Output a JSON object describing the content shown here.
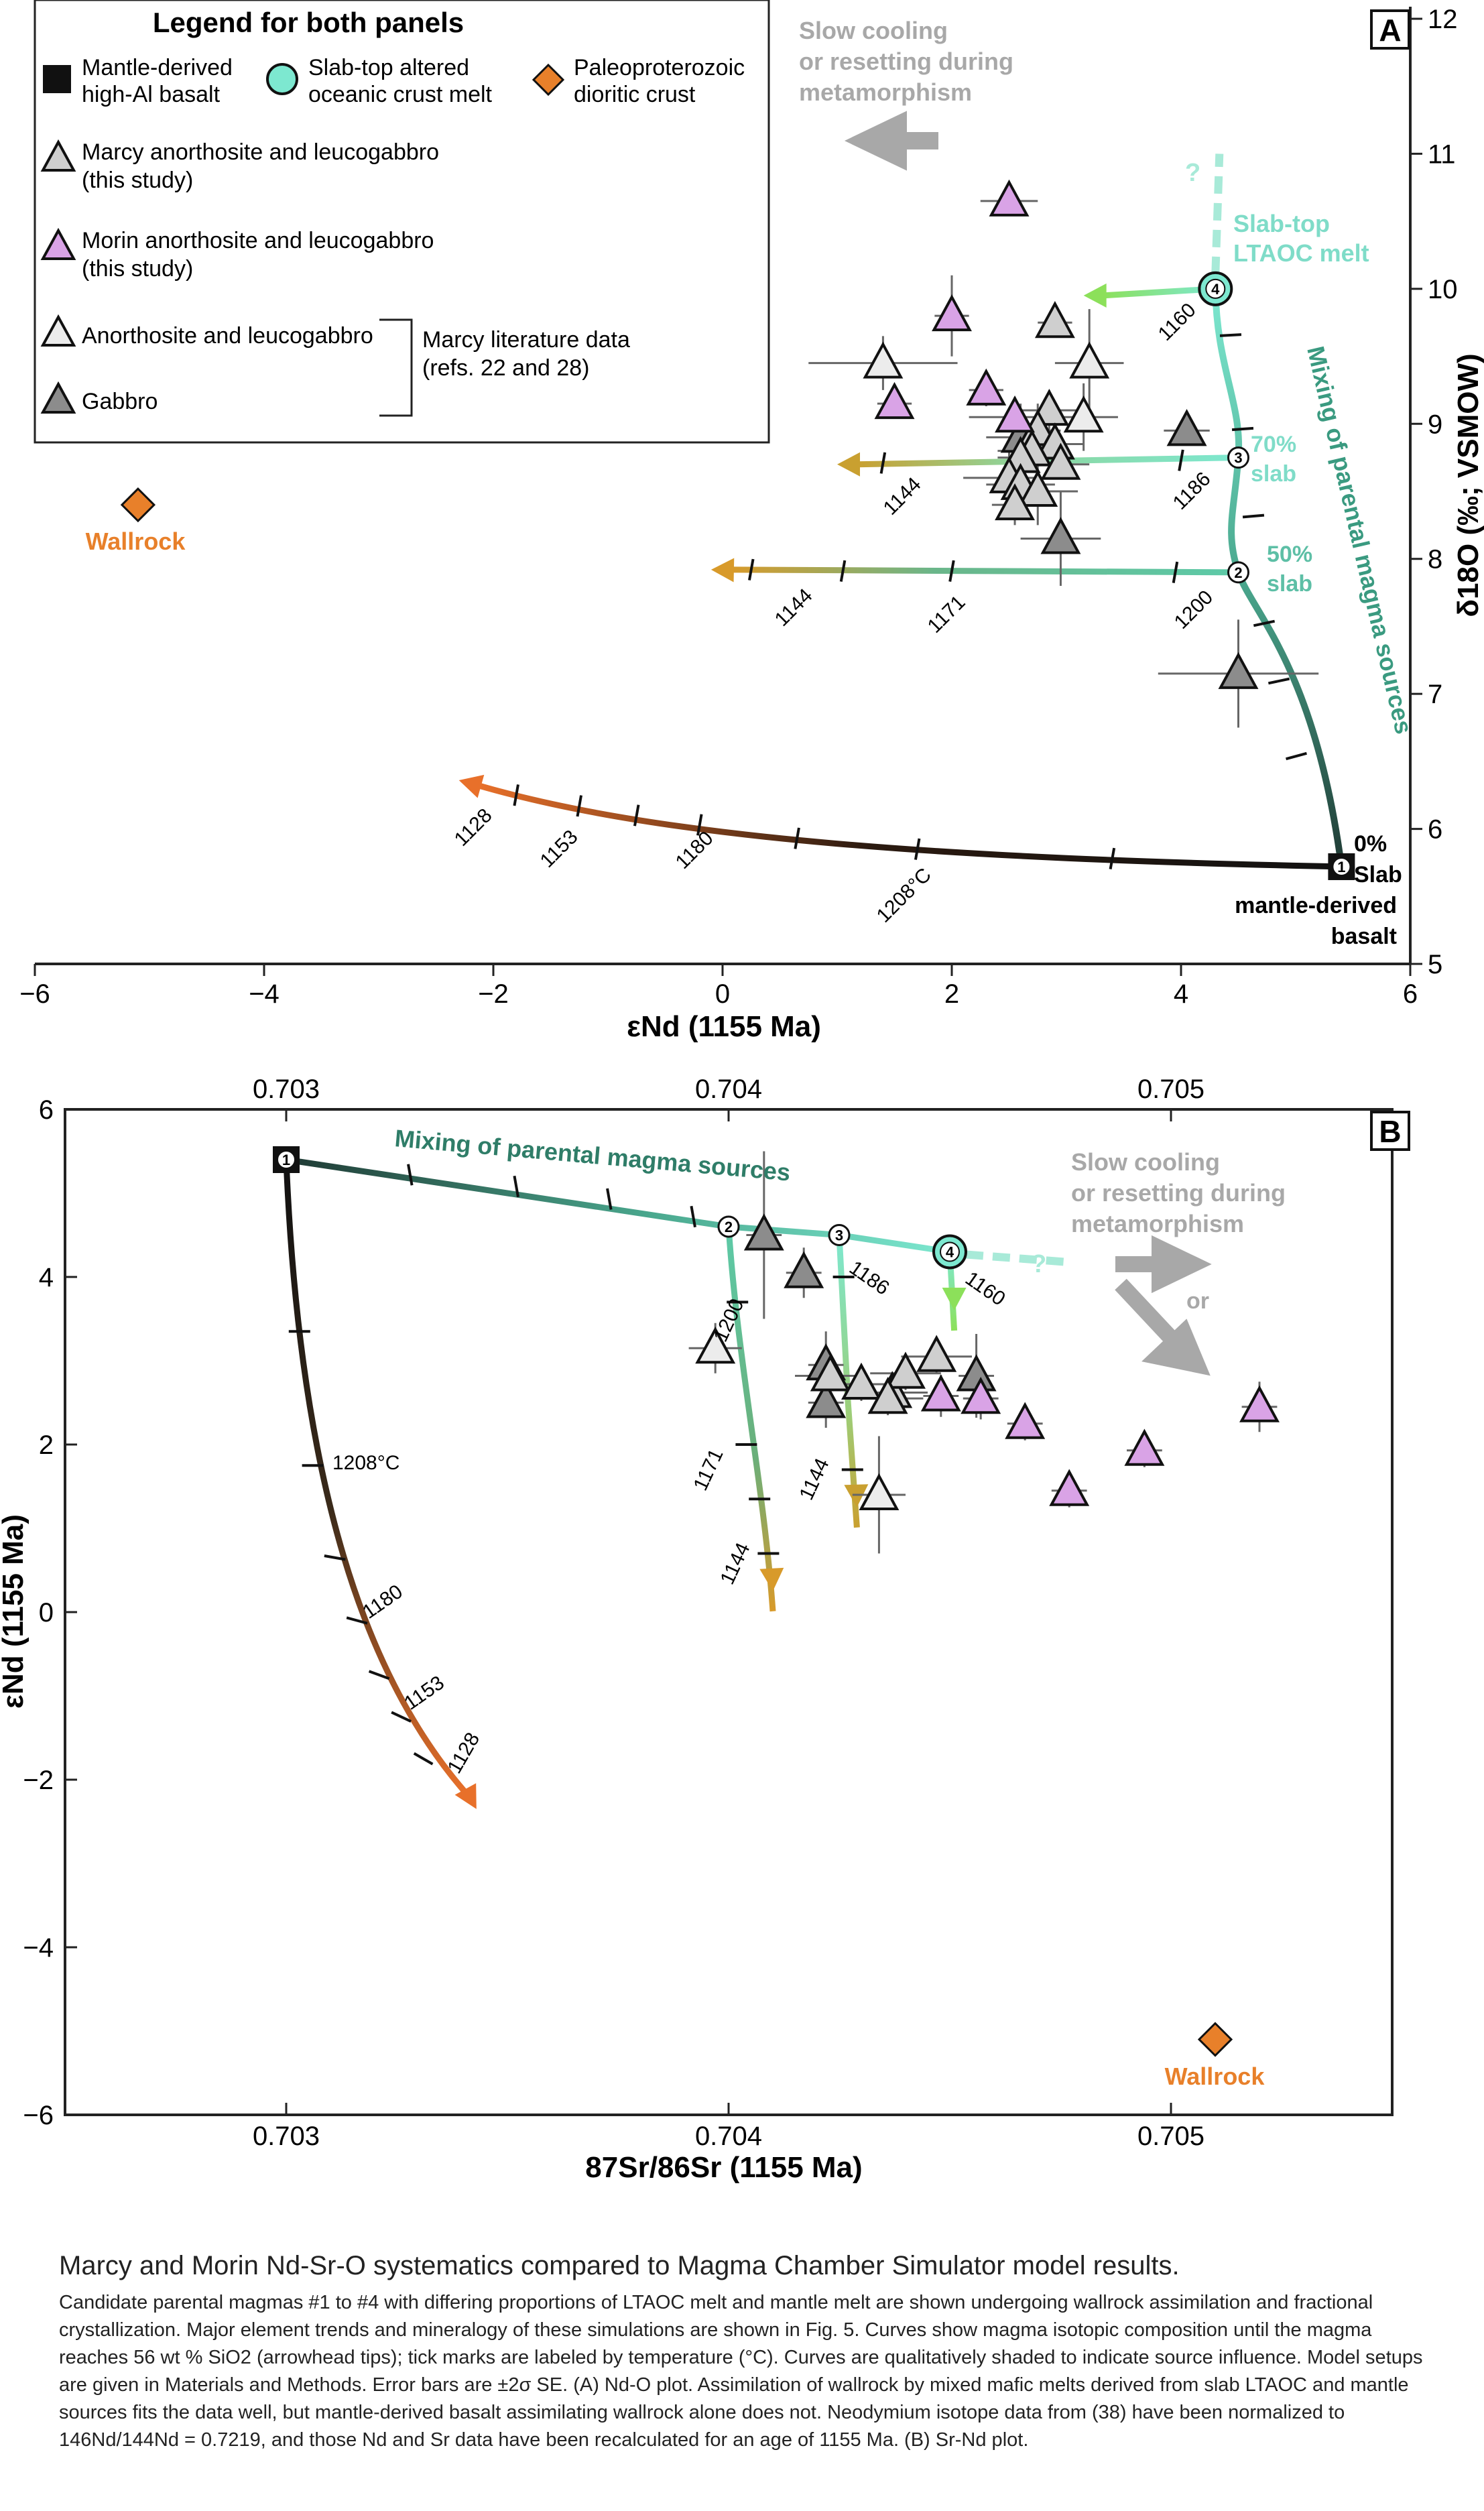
{
  "colors": {
    "marcy": "#cfcfcf",
    "morin": "#d9a3e6",
    "lit_anorthosite": "#ececec",
    "gabbro": "#8c8c8c",
    "mantle": "#111111",
    "slab_melt": "#7de8d0",
    "wallrock": "#e8802a",
    "arrow_grey": "#a8a8a8",
    "label_teal": "#7fdcc8",
    "label_darkteal": "#2f7d68"
  },
  "legend": {
    "title": "Legend for both panels",
    "mantle": "Mantle-derived high-Al basalt",
    "slab": "Slab-top altered oceanic crust melt",
    "paleo": "Paleoproterozoic dioritic crust",
    "marcy": "Marcy anorthosite and leucogabbro (this study)",
    "morin": "Morin anorthosite and leucogabbro (this study)",
    "anorthosite": "Anorthosite and leucogabbro",
    "gabbro": "Gabbro",
    "lit": "Marcy literature data (refs. 22 and 28)"
  },
  "panelA": {
    "panel_label": "A",
    "xlabel": "εNd (1155 Ma)",
    "ylabel": "δ18O (‰; VSMOW)",
    "slow_cooling": "Slow cooling or resetting during metamorphism",
    "slab_top": "Slab-top LTAOC melt",
    "mixing": "Mixing of parental magma sources",
    "pct70": "70% slab",
    "pct50": "50% slab",
    "pct0": "0% Slab",
    "mantle_basalt": "mantle-derived basalt",
    "wallrock": "Wallrock",
    "question": "?",
    "temps": {
      "t1160": "1160",
      "t1186": "1186",
      "t1144a": "1144",
      "t1200": "1200",
      "t1171": "1171",
      "t1144b": "1144",
      "t1208": "1208°C",
      "t1180": "1180",
      "t1153": "1153",
      "t1128": "1128"
    }
  },
  "panelB": {
    "panel_label": "B",
    "xlabel": "87Sr/86Sr (1155 Ma)",
    "ylabel": "εNd (1155 Ma)",
    "slow_cooling": "Slow cooling or resetting during metamorphism",
    "or": "or",
    "mixing": "Mixing of parental magma sources",
    "wallrock": "Wallrock",
    "question": "?",
    "temps": {
      "t1200": "1200",
      "t1171": "1171",
      "t1144a": "1144",
      "t1186": "1186",
      "t1144b": "1144",
      "t1160": "1160",
      "t1208": "1208°C",
      "t1180": "1180",
      "t1153": "1153",
      "t1128": "1128"
    }
  },
  "chart_data": [
    {
      "type": "scatter",
      "title": "A",
      "xlabel": "εNd (1155 Ma)",
      "ylabel": "δ18O (‰; VSMOW)",
      "xlim": [
        -6,
        6
      ],
      "ylim": [
        5,
        12
      ],
      "xticks": [
        -6,
        -4,
        -2,
        0,
        2,
        4,
        6
      ],
      "yticks": [
        5,
        6,
        7,
        8,
        9,
        10,
        11,
        12
      ],
      "series": [
        {
          "name": "Marcy anorthosite and leucogabbro (this study)",
          "points": [
            [
              2.9,
              9.75
            ],
            [
              2.85,
              9.1
            ],
            [
              2.75,
              8.95
            ],
            [
              2.9,
              8.85
            ],
            [
              2.7,
              8.8
            ],
            [
              2.6,
              8.75
            ],
            [
              2.95,
              8.7
            ],
            [
              2.5,
              8.6
            ],
            [
              2.6,
              8.55
            ],
            [
              2.75,
              8.5
            ],
            [
              2.55,
              8.4
            ]
          ]
        },
        {
          "name": "Morin anorthosite and leucogabbro (this study)",
          "points": [
            [
              2.5,
              10.65
            ],
            [
              2.0,
              9.8
            ],
            [
              2.3,
              9.25
            ],
            [
              2.55,
              9.05
            ],
            [
              1.5,
              9.15
            ]
          ]
        },
        {
          "name": "Anorthosite and leucogabbro",
          "points": [
            [
              1.4,
              9.45
            ],
            [
              3.2,
              9.45
            ],
            [
              3.15,
              9.05
            ]
          ]
        },
        {
          "name": "Gabbro",
          "points": [
            [
              4.05,
              8.95
            ],
            [
              2.6,
              8.9
            ],
            [
              2.95,
              8.15
            ],
            [
              4.5,
              7.15
            ]
          ]
        },
        {
          "name": "Wallrock",
          "points": [
            [
              -5.1,
              8.4
            ]
          ]
        },
        {
          "name": "Endmembers",
          "points": [
            [
              5.4,
              5.72
            ],
            [
              4.5,
              7.9
            ],
            [
              4.5,
              8.75
            ],
            [
              4.3,
              10.0
            ]
          ]
        }
      ]
    },
    {
      "type": "scatter",
      "title": "B",
      "xlabel": "87Sr/86Sr (1155 Ma)",
      "ylabel": "εNd (1155 Ma)",
      "xlim": [
        0.7025,
        0.7055
      ],
      "ylim": [
        -6,
        6
      ],
      "xticks": [
        0.703,
        0.704,
        0.705
      ],
      "yticks": [
        -6,
        -4,
        -2,
        0,
        2,
        4,
        6
      ],
      "series": [
        {
          "name": "Marcy anorthosite and leucogabbro (this study)",
          "points": [
            [
              0.70423,
              2.82
            ],
            [
              0.7043,
              2.72
            ],
            [
              0.70437,
              2.62
            ],
            [
              0.7044,
              2.85
            ],
            [
              0.70436,
              2.55
            ],
            [
              0.70447,
              3.05
            ]
          ]
        },
        {
          "name": "Morin anorthosite and leucogabbro (this study)",
          "points": [
            [
              0.70467,
              2.25
            ],
            [
              0.70477,
              1.45
            ],
            [
              0.70494,
              1.93
            ],
            [
              0.7052,
              2.45
            ],
            [
              0.70448,
              2.58
            ],
            [
              0.70457,
              2.55
            ]
          ]
        },
        {
          "name": "Anorthosite and leucogabbro",
          "points": [
            [
              0.70397,
              3.15
            ],
            [
              0.70434,
              1.4
            ]
          ]
        },
        {
          "name": "Gabbro",
          "points": [
            [
              0.70408,
              4.5
            ],
            [
              0.70417,
              4.05
            ],
            [
              0.70422,
              2.95
            ],
            [
              0.70422,
              2.5
            ],
            [
              0.70456,
              2.82
            ]
          ]
        },
        {
          "name": "Wallrock",
          "points": [
            [
              0.7051,
              -5.1
            ]
          ]
        },
        {
          "name": "Endmembers",
          "points": [
            [
              0.703,
              5.4
            ],
            [
              0.704,
              4.6
            ],
            [
              0.70425,
              4.5
            ],
            [
              0.7045,
              4.3
            ]
          ]
        }
      ]
    }
  ],
  "caption": {
    "title": "Marcy and Morin Nd-Sr-O systematics compared to Magma Chamber Simulator model results.",
    "body": "Candidate parental magmas #1 to #4 with differing proportions of LTAOC melt and mantle melt are shown undergoing wallrock assimilation and fractional crystallization. Major element trends and mineralogy of these simulations are shown in Fig. 5. Curves show magma isotopic composition until the magma reaches 56 wt % SiO2 (arrowhead tips); tick marks are labeled by temperature (°C). Curves are qualitatively shaded to indicate source influence. Model setups are given in Materials and Methods. Error bars are ±2σ SE. (A) Nd-O plot. Assimilation of wallrock by mixed mafic melts derived from slab LTAOC and mantle sources fits the data well, but mantle-derived basalt assimilating wallrock alone does not. Neodymium isotope data from (38) have been normalized to 146Nd/144Nd = 0.7219, and those Nd and Sr data have been recalculated for an age of 1155 Ma. (B) Sr-Nd plot."
  }
}
